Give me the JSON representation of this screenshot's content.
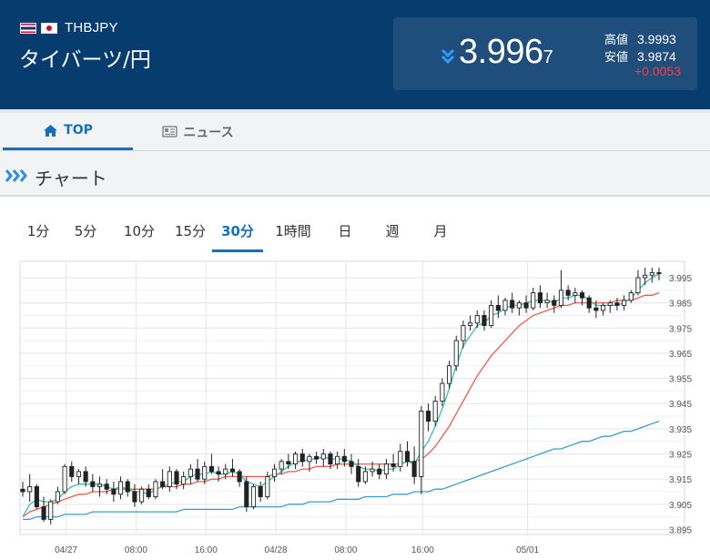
{
  "header": {
    "pair_code": "THBJPY",
    "pair_name": "タイバーツ/円",
    "price_main": "3.996",
    "price_small": "7",
    "high_label": "高値",
    "high_value": "3.9993",
    "low_label": "安値",
    "low_value": "3.9874",
    "change": "+0.0053",
    "trend_icon": "double-chevron-down-icon",
    "colors": {
      "bg": "#063d6e",
      "box": "#1f4d7c",
      "change": "#ff3b3b",
      "trend": "#2f9bff"
    }
  },
  "tabs": [
    {
      "label": "TOP",
      "icon": "home-icon",
      "active": true
    },
    {
      "label": "ニュース",
      "icon": "news-icon",
      "active": false
    }
  ],
  "section": {
    "title": "チャート",
    "icon": "triple-chevron-right-icon"
  },
  "periods": [
    {
      "label": "1分",
      "active": false
    },
    {
      "label": "5分",
      "active": false
    },
    {
      "label": "10分",
      "active": false
    },
    {
      "label": "15分",
      "active": false
    },
    {
      "label": "30分",
      "active": true
    },
    {
      "label": "1時間",
      "active": false
    },
    {
      "label": "日",
      "active": false
    },
    {
      "label": "週",
      "active": false
    },
    {
      "label": "月",
      "active": false
    }
  ],
  "chart_data": {
    "type": "candlestick",
    "x_ticks": [
      "04/27",
      "08:00",
      "16:00",
      "04/28",
      "08:00",
      "16:00",
      "05/01"
    ],
    "y_ticks": [
      "3.995",
      "3.985",
      "3.975",
      "3.965",
      "3.955",
      "3.945",
      "3.935",
      "3.925",
      "3.915",
      "3.905",
      "3.895"
    ],
    "ylim": [
      3.893,
      4.0015
    ],
    "grid": true,
    "candles": [
      [
        3.911,
        3.914,
        3.908,
        3.91
      ],
      [
        3.91,
        3.917,
        3.906,
        3.912
      ],
      [
        3.912,
        3.913,
        3.903,
        3.904
      ],
      [
        3.904,
        3.908,
        3.898,
        3.899
      ],
      [
        3.899,
        3.907,
        3.897,
        3.906
      ],
      [
        3.906,
        3.912,
        3.905,
        3.91
      ],
      [
        3.91,
        3.921,
        3.909,
        3.92
      ],
      [
        3.92,
        3.922,
        3.914,
        3.916
      ],
      [
        3.916,
        3.919,
        3.913,
        3.918
      ],
      [
        3.918,
        3.92,
        3.912,
        3.914
      ],
      [
        3.914,
        3.917,
        3.91,
        3.912
      ],
      [
        3.912,
        3.916,
        3.908,
        3.913
      ],
      [
        3.913,
        3.915,
        3.909,
        3.911
      ],
      [
        3.911,
        3.914,
        3.906,
        3.909
      ],
      [
        3.909,
        3.916,
        3.907,
        3.914
      ],
      [
        3.914,
        3.915,
        3.908,
        3.91
      ],
      [
        3.91,
        3.913,
        3.904,
        3.906
      ],
      [
        3.906,
        3.912,
        3.905,
        3.911
      ],
      [
        3.911,
        3.913,
        3.907,
        3.908
      ],
      [
        3.908,
        3.915,
        3.907,
        3.914
      ],
      [
        3.914,
        3.919,
        3.911,
        3.912
      ],
      [
        3.912,
        3.92,
        3.91,
        3.918
      ],
      [
        3.918,
        3.919,
        3.911,
        3.913
      ],
      [
        3.913,
        3.918,
        3.911,
        3.916
      ],
      [
        3.916,
        3.921,
        3.913,
        3.919
      ],
      [
        3.919,
        3.923,
        3.914,
        3.915
      ],
      [
        3.915,
        3.922,
        3.913,
        3.92
      ],
      [
        3.92,
        3.925,
        3.917,
        3.918
      ],
      [
        3.918,
        3.92,
        3.914,
        3.917
      ],
      [
        3.917,
        3.921,
        3.915,
        3.919
      ],
      [
        3.919,
        3.923,
        3.916,
        3.918
      ],
      [
        3.918,
        3.919,
        3.912,
        3.914
      ],
      [
        3.914,
        3.916,
        3.902,
        3.904
      ],
      [
        3.904,
        3.913,
        3.903,
        3.912
      ],
      [
        3.912,
        3.914,
        3.906,
        3.908
      ],
      [
        3.908,
        3.918,
        3.907,
        3.916
      ],
      [
        3.916,
        3.921,
        3.914,
        3.919
      ],
      [
        3.919,
        3.923,
        3.917,
        3.922
      ],
      [
        3.922,
        3.925,
        3.919,
        3.921
      ],
      [
        3.921,
        3.926,
        3.919,
        3.925
      ],
      [
        3.925,
        3.927,
        3.92,
        3.922
      ],
      [
        3.922,
        3.925,
        3.918,
        3.924
      ],
      [
        3.924,
        3.926,
        3.921,
        3.923
      ],
      [
        3.923,
        3.927,
        3.92,
        3.925
      ],
      [
        3.925,
        3.926,
        3.919,
        3.921
      ],
      [
        3.921,
        3.926,
        3.919,
        3.924
      ],
      [
        3.924,
        3.927,
        3.92,
        3.922
      ],
      [
        3.922,
        3.925,
        3.917,
        3.92
      ],
      [
        3.92,
        3.923,
        3.912,
        3.914
      ],
      [
        3.914,
        3.92,
        3.913,
        3.918
      ],
      [
        3.918,
        3.922,
        3.916,
        3.919
      ],
      [
        3.919,
        3.921,
        3.915,
        3.917
      ],
      [
        3.917,
        3.923,
        3.915,
        3.921
      ],
      [
        3.921,
        3.925,
        3.918,
        3.92
      ],
      [
        3.92,
        3.929,
        3.918,
        3.926
      ],
      [
        3.926,
        3.93,
        3.92,
        3.922
      ],
      [
        3.922,
        3.928,
        3.913,
        3.916
      ],
      [
        3.916,
        3.944,
        3.909,
        3.942
      ],
      [
        3.942,
        3.945,
        3.934,
        3.938
      ],
      [
        3.938,
        3.948,
        3.936,
        3.946
      ],
      [
        3.946,
        3.955,
        3.944,
        3.953
      ],
      [
        3.953,
        3.962,
        3.951,
        3.96
      ],
      [
        3.96,
        3.972,
        3.958,
        3.97
      ],
      [
        3.97,
        3.978,
        3.967,
        3.976
      ],
      [
        3.976,
        3.98,
        3.974,
        3.977
      ],
      [
        3.977,
        3.982,
        3.975,
        3.98
      ],
      [
        3.98,
        3.982,
        3.974,
        3.976
      ],
      [
        3.976,
        3.986,
        3.975,
        3.984
      ],
      [
        3.984,
        3.988,
        3.979,
        3.982
      ],
      [
        3.982,
        3.987,
        3.98,
        3.986
      ],
      [
        3.986,
        3.989,
        3.981,
        3.983
      ],
      [
        3.983,
        3.986,
        3.98,
        3.985
      ],
      [
        3.985,
        3.988,
        3.981,
        3.983
      ],
      [
        3.983,
        3.991,
        3.982,
        3.989
      ],
      [
        3.989,
        3.992,
        3.983,
        3.985
      ],
      [
        3.985,
        3.989,
        3.983,
        3.986
      ],
      [
        3.986,
        3.988,
        3.981,
        3.984
      ],
      [
        3.984,
        3.998,
        3.983,
        3.99
      ],
      [
        3.99,
        3.992,
        3.986,
        3.988
      ],
      [
        3.988,
        3.991,
        3.985,
        3.989
      ],
      [
        3.989,
        3.99,
        3.984,
        3.987
      ],
      [
        3.987,
        3.988,
        3.981,
        3.983
      ],
      [
        3.983,
        3.986,
        3.979,
        3.982
      ],
      [
        3.982,
        3.985,
        3.98,
        3.984
      ],
      [
        3.984,
        3.986,
        3.981,
        3.985
      ],
      [
        3.985,
        3.987,
        3.982,
        3.984
      ],
      [
        3.984,
        3.988,
        3.982,
        3.986
      ],
      [
        3.986,
        3.99,
        3.985,
        3.989
      ],
      [
        3.989,
        3.998,
        3.988,
        3.995
      ],
      [
        3.995,
        3.999,
        3.992,
        3.996
      ],
      [
        3.996,
        3.999,
        3.993,
        3.997
      ],
      [
        3.997,
        3.999,
        3.994,
        3.9967
      ]
    ],
    "ma_short": [
      3.9,
      3.905,
      3.907,
      3.906,
      3.906,
      3.907,
      3.91,
      3.912,
      3.913,
      3.913,
      3.913,
      3.913,
      3.912,
      3.911,
      3.912,
      3.911,
      3.91,
      3.91,
      3.909,
      3.911,
      3.912,
      3.913,
      3.914,
      3.914,
      3.916,
      3.917,
      3.917,
      3.918,
      3.917,
      3.917,
      3.918,
      3.917,
      3.914,
      3.913,
      3.912,
      3.914,
      3.916,
      3.918,
      3.92,
      3.922,
      3.922,
      3.923,
      3.923,
      3.924,
      3.923,
      3.923,
      3.923,
      3.922,
      3.92,
      3.919,
      3.919,
      3.918,
      3.919,
      3.919,
      3.921,
      3.922,
      3.921,
      3.926,
      3.93,
      3.936,
      3.943,
      3.951,
      3.96,
      3.968,
      3.972,
      3.976,
      3.977,
      3.98,
      3.981,
      3.983,
      3.984,
      3.984,
      3.985,
      3.986,
      3.986,
      3.986,
      3.985,
      3.987,
      3.987,
      3.988,
      3.988,
      3.986,
      3.984,
      3.984,
      3.984,
      3.984,
      3.985,
      3.987,
      3.99,
      3.993,
      3.995,
      3.9965
    ],
    "ma_mid": [
      3.9,
      3.902,
      3.903,
      3.904,
      3.905,
      3.906,
      3.907,
      3.908,
      3.909,
      3.909,
      3.91,
      3.91,
      3.91,
      3.911,
      3.911,
      3.911,
      3.911,
      3.911,
      3.911,
      3.911,
      3.912,
      3.912,
      3.912,
      3.913,
      3.913,
      3.914,
      3.914,
      3.915,
      3.915,
      3.916,
      3.916,
      3.916,
      3.916,
      3.916,
      3.916,
      3.916,
      3.917,
      3.917,
      3.918,
      3.918,
      3.919,
      3.919,
      3.92,
      3.92,
      3.92,
      3.921,
      3.921,
      3.921,
      3.921,
      3.921,
      3.921,
      3.921,
      3.921,
      3.921,
      3.921,
      3.922,
      3.922,
      3.923,
      3.925,
      3.928,
      3.932,
      3.936,
      3.941,
      3.946,
      3.951,
      3.956,
      3.96,
      3.964,
      3.967,
      3.97,
      3.973,
      3.976,
      3.978,
      3.98,
      3.981,
      3.982,
      3.983,
      3.984,
      3.984,
      3.985,
      3.985,
      3.985,
      3.985,
      3.985,
      3.985,
      3.986,
      3.986,
      3.986,
      3.987,
      3.988,
      3.988,
      3.989
    ],
    "ma_long": [
      3.899,
      3.899,
      3.9,
      3.9,
      3.9,
      3.9,
      3.901,
      3.901,
      3.901,
      3.901,
      3.902,
      3.902,
      3.902,
      3.902,
      3.902,
      3.902,
      3.902,
      3.902,
      3.902,
      3.902,
      3.902,
      3.902,
      3.902,
      3.903,
      3.903,
      3.903,
      3.903,
      3.903,
      3.903,
      3.903,
      3.903,
      3.904,
      3.904,
      3.904,
      3.904,
      3.904,
      3.904,
      3.904,
      3.905,
      3.905,
      3.905,
      3.906,
      3.906,
      3.906,
      3.906,
      3.907,
      3.907,
      3.907,
      3.907,
      3.908,
      3.908,
      3.908,
      3.908,
      3.909,
      3.909,
      3.909,
      3.91,
      3.91,
      3.91,
      3.911,
      3.911,
      3.912,
      3.913,
      3.914,
      3.915,
      3.916,
      3.917,
      3.918,
      3.919,
      3.92,
      3.921,
      3.922,
      3.923,
      3.924,
      3.925,
      3.926,
      3.927,
      3.927,
      3.928,
      3.929,
      3.93,
      3.93,
      3.931,
      3.932,
      3.932,
      3.933,
      3.934,
      3.934,
      3.935,
      3.936,
      3.937,
      3.938
    ],
    "colors": {
      "ma_short": "#2ec4a4",
      "ma_mid": "#f05a4f",
      "ma_long": "#3a9ccc",
      "candle": "#222222",
      "grid": "#e2e5e8"
    }
  }
}
